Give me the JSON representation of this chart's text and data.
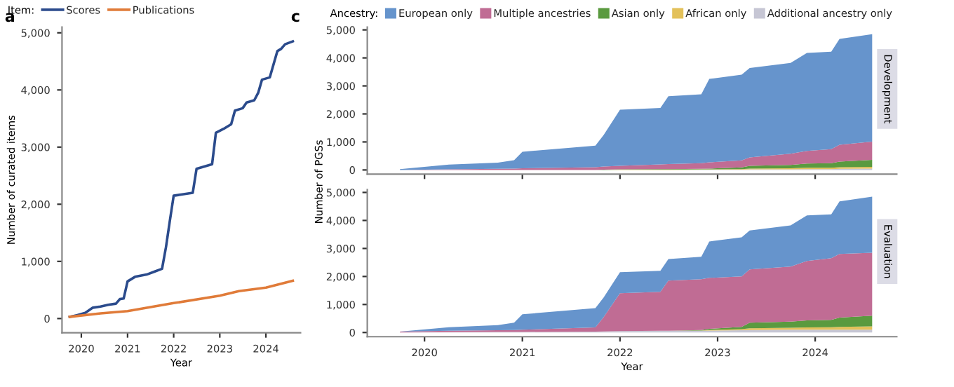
{
  "chart_data": [
    {
      "type": "line",
      "annotations": [
        "a"
      ],
      "xlabel": "Year",
      "ylabel": "Number of curated items",
      "legend_title": "Item:",
      "legend": "top",
      "xlim": [
        "2019-08",
        "2024-10"
      ],
      "xticks": [
        "2020",
        "2021",
        "2022",
        "2023",
        "2024"
      ],
      "ylim": [
        -250,
        5100
      ],
      "yticks": [
        0,
        {
          "value": 1000,
          "label": "1,000"
        },
        {
          "value": 2000,
          "label": "2,000"
        },
        {
          "value": 3000,
          "label": "3,000"
        },
        {
          "value": 4000,
          "label": "4,000"
        },
        {
          "value": 5000,
          "label": "5,000"
        }
      ],
      "series": [
        {
          "name": "Scores",
          "color": "#2b4b8c",
          "x": [
            "2019-10",
            "2019-12",
            "2020-02",
            "2020-04",
            "2020-06",
            "2020-08",
            "2020-10",
            "2020-11",
            "2020-12",
            "2021-01",
            "2021-03",
            "2021-06",
            "2021-08",
            "2021-10",
            "2021-11",
            "2021-12",
            "2022-01",
            "2022-03",
            "2022-06",
            "2022-07",
            "2022-09",
            "2022-11",
            "2022-12",
            "2023-02",
            "2023-04",
            "2023-05",
            "2023-07",
            "2023-08",
            "2023-10",
            "2023-11",
            "2023-12",
            "2024-02",
            "2024-04",
            "2024-05",
            "2024-06",
            "2024-08"
          ],
          "values": [
            30,
            60,
            100,
            190,
            210,
            240,
            260,
            340,
            350,
            650,
            730,
            770,
            820,
            870,
            1250,
            1700,
            2150,
            2170,
            2200,
            2620,
            2660,
            2700,
            3250,
            3320,
            3400,
            3640,
            3680,
            3780,
            3820,
            3950,
            4180,
            4220,
            4680,
            4720,
            4800,
            4850
          ]
        },
        {
          "name": "Publications",
          "color": "#e07b39",
          "x": [
            "2019-10",
            "2020-06",
            "2021-01",
            "2022-01",
            "2023-01",
            "2023-06",
            "2024-01",
            "2024-08"
          ],
          "values": [
            30,
            90,
            130,
            270,
            400,
            480,
            540,
            660
          ]
        }
      ]
    },
    {
      "type": "area",
      "stacked": true,
      "title": "Development",
      "annotations": [
        "c"
      ],
      "ylabel": "Number of PGSs",
      "legend_title": "Ancestry:",
      "legend": "top",
      "tick_labels": "y",
      "xlim": [
        "2019-06",
        "2024-11"
      ],
      "xticks": [
        "2020",
        "2021",
        "2022",
        "2023",
        "2024"
      ],
      "ylim": [
        -150,
        5100
      ],
      "yticks": [
        0,
        {
          "value": 1000,
          "label": "1,000"
        },
        {
          "value": 2000,
          "label": "2,000"
        },
        {
          "value": 3000,
          "label": "3,000"
        },
        {
          "value": 4000,
          "label": "4,000"
        },
        {
          "value": 5000,
          "label": "5,000"
        }
      ],
      "x": [
        "2019-10",
        "2020-04",
        "2020-10",
        "2020-12",
        "2021-01",
        "2021-10",
        "2021-11",
        "2022-01",
        "2022-06",
        "2022-07",
        "2022-11",
        "2022-12",
        "2023-04",
        "2023-05",
        "2023-10",
        "2023-12",
        "2024-03",
        "2024-04",
        "2024-08"
      ],
      "series": [
        {
          "name": "Additional ancestry only",
          "color": "#c6c6d4",
          "values": [
            0,
            0,
            0,
            0,
            0,
            0,
            0,
            0,
            0,
            0,
            10,
            10,
            10,
            20,
            20,
            30,
            30,
            40,
            50
          ]
        },
        {
          "name": "African only",
          "color": "#e3c15a",
          "values": [
            0,
            0,
            0,
            0,
            0,
            0,
            0,
            10,
            10,
            10,
            10,
            10,
            20,
            30,
            40,
            50,
            50,
            60,
            60
          ]
        },
        {
          "name": "Asian only",
          "color": "#5a9a3f",
          "values": [
            0,
            0,
            0,
            0,
            0,
            0,
            10,
            10,
            20,
            20,
            20,
            30,
            60,
            100,
            120,
            150,
            160,
            200,
            250
          ]
        },
        {
          "name": "Multiple ancestries",
          "color": "#c06c94",
          "values": [
            0,
            20,
            40,
            50,
            60,
            100,
            110,
            130,
            170,
            180,
            200,
            220,
            250,
            300,
            400,
            450,
            500,
            600,
            650
          ]
        },
        {
          "name": "European only",
          "color": "#6694cc",
          "values": [
            30,
            170,
            220,
            300,
            590,
            770,
            1130,
            2000,
            2010,
            2420,
            2460,
            2980,
            3060,
            3190,
            3240,
            3500,
            3480,
            3780,
            3840
          ]
        }
      ]
    },
    {
      "type": "area",
      "stacked": true,
      "title": "Evaluation",
      "xlabel": "Year",
      "xlim": [
        "2019-06",
        "2024-11"
      ],
      "xticks": [
        "2020",
        "2021",
        "2022",
        "2023",
        "2024"
      ],
      "ylim": [
        -150,
        5100
      ],
      "yticks": [
        0,
        {
          "value": 1000,
          "label": "1,000"
        },
        {
          "value": 2000,
          "label": "2,000"
        },
        {
          "value": 3000,
          "label": "3,000"
        },
        {
          "value": 4000,
          "label": "4,000"
        },
        {
          "value": 5000,
          "label": "5,000"
        }
      ],
      "x": [
        "2019-10",
        "2020-04",
        "2020-10",
        "2020-12",
        "2021-01",
        "2021-10",
        "2021-11",
        "2022-01",
        "2022-06",
        "2022-07",
        "2022-11",
        "2022-12",
        "2023-04",
        "2023-05",
        "2023-10",
        "2023-12",
        "2024-03",
        "2024-04",
        "2024-08"
      ],
      "series": [
        {
          "color": "#c6c6d4",
          "values": [
            0,
            10,
            20,
            20,
            20,
            30,
            40,
            50,
            60,
            60,
            60,
            70,
            80,
            90,
            100,
            100,
            100,
            100,
            100
          ]
        },
        {
          "color": "#e3c15a",
          "values": [
            0,
            0,
            0,
            0,
            0,
            0,
            0,
            0,
            0,
            0,
            10,
            20,
            40,
            60,
            70,
            80,
            90,
            100,
            120
          ]
        },
        {
          "color": "#5a9a3f",
          "values": [
            0,
            0,
            0,
            0,
            0,
            0,
            0,
            0,
            0,
            0,
            20,
            40,
            80,
            200,
            220,
            250,
            260,
            330,
            380
          ]
        },
        {
          "color": "#c06c94",
          "values": [
            30,
            50,
            60,
            70,
            80,
            150,
            510,
            1350,
            1390,
            1790,
            1810,
            1820,
            1800,
            1900,
            1960,
            2120,
            2200,
            2270,
            2250
          ]
        },
        {
          "color": "#6694cc",
          "values": [
            0,
            130,
            180,
            260,
            550,
            690,
            700,
            750,
            750,
            770,
            800,
            1300,
            1400,
            1390,
            1470,
            1630,
            1570,
            1880,
            2000
          ]
        }
      ]
    }
  ]
}
